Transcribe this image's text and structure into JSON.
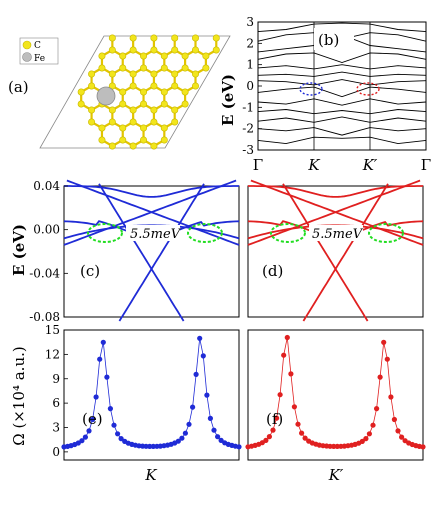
{
  "chart_data": [
    {
      "panel": "a",
      "type": "other",
      "label": "(a)",
      "legend": [
        {
          "name": "C",
          "color": "#f2e51c"
        },
        {
          "name": "Fe",
          "color": "#b8b8b8"
        }
      ]
    },
    {
      "panel": "b",
      "type": "line",
      "label": "(b)",
      "ylabel": "E (eV)",
      "ylim": [
        -3,
        3
      ],
      "yticks": [
        "-3",
        "-2",
        "-1",
        "0",
        "1",
        "2",
        "3"
      ],
      "xticks": [
        "Γ",
        "K",
        "K′",
        "Γ"
      ],
      "bands": [
        [
          2.55,
          2.65,
          2.9,
          2.95,
          2.9,
          2.65,
          2.55
        ],
        [
          2.1,
          2.4,
          2.5,
          2.2,
          2.5,
          2.4,
          2.1
        ],
        [
          1.6,
          1.75,
          1.9,
          2.4,
          1.9,
          1.75,
          1.6
        ],
        [
          1.25,
          1.5,
          1.55,
          1.1,
          1.55,
          1.5,
          1.25
        ],
        [
          0.85,
          0.95,
          0.8,
          1.0,
          0.8,
          0.95,
          0.85
        ],
        [
          0.5,
          0.55,
          0.45,
          0.65,
          0.45,
          0.55,
          0.5
        ],
        [
          0.25,
          0.2,
          0.05,
          0.3,
          0.05,
          0.2,
          0.25
        ],
        [
          -0.3,
          -0.15,
          -0.05,
          -0.5,
          -0.05,
          -0.15,
          -0.3
        ],
        [
          -0.75,
          -0.85,
          -0.6,
          -0.9,
          -0.6,
          -0.85,
          -0.75
        ],
        [
          -1.2,
          -1.1,
          -1.3,
          -1.15,
          -1.3,
          -1.1,
          -1.2
        ],
        [
          -1.65,
          -1.5,
          -1.7,
          -1.45,
          -1.7,
          -1.5,
          -1.65
        ],
        [
          -2.0,
          -2.1,
          -1.95,
          -2.3,
          -1.95,
          -2.1,
          -2.0
        ],
        [
          -2.55,
          -2.7,
          -2.4,
          -2.45,
          -2.4,
          -2.7,
          -2.55
        ]
      ],
      "highlights": [
        {
          "at": "K",
          "color": "#1f2bd6"
        },
        {
          "at": "K′",
          "color": "#e02020"
        }
      ]
    },
    {
      "panel": "c",
      "type": "line",
      "label": "(c)",
      "ylabel": "E (eV)",
      "ylim": [
        -0.08,
        0.04
      ],
      "yticks": [
        "0.04",
        "0.00",
        "-0.04",
        "-0.08"
      ],
      "annotation": "5.5meV",
      "color": "#1f2bd6"
    },
    {
      "panel": "d",
      "type": "line",
      "label": "(d)",
      "annotation": "5.5meV",
      "color": "#e02020"
    },
    {
      "panel": "e",
      "type": "scatter",
      "label": "(e)",
      "ylabel": "Ω (×10⁴ a.u.)",
      "ylim": [
        -1,
        15
      ],
      "yticks": [
        "0",
        "3",
        "6",
        "9",
        "12",
        "15"
      ],
      "xtick": "K",
      "color": "#1f2bd6",
      "peaks": [
        13.6,
        14.1
      ]
    },
    {
      "panel": "f",
      "type": "scatter",
      "label": "(f)",
      "xtick": "K′",
      "color": "#e02020",
      "peaks": [
        14.2,
        13.6
      ]
    }
  ]
}
